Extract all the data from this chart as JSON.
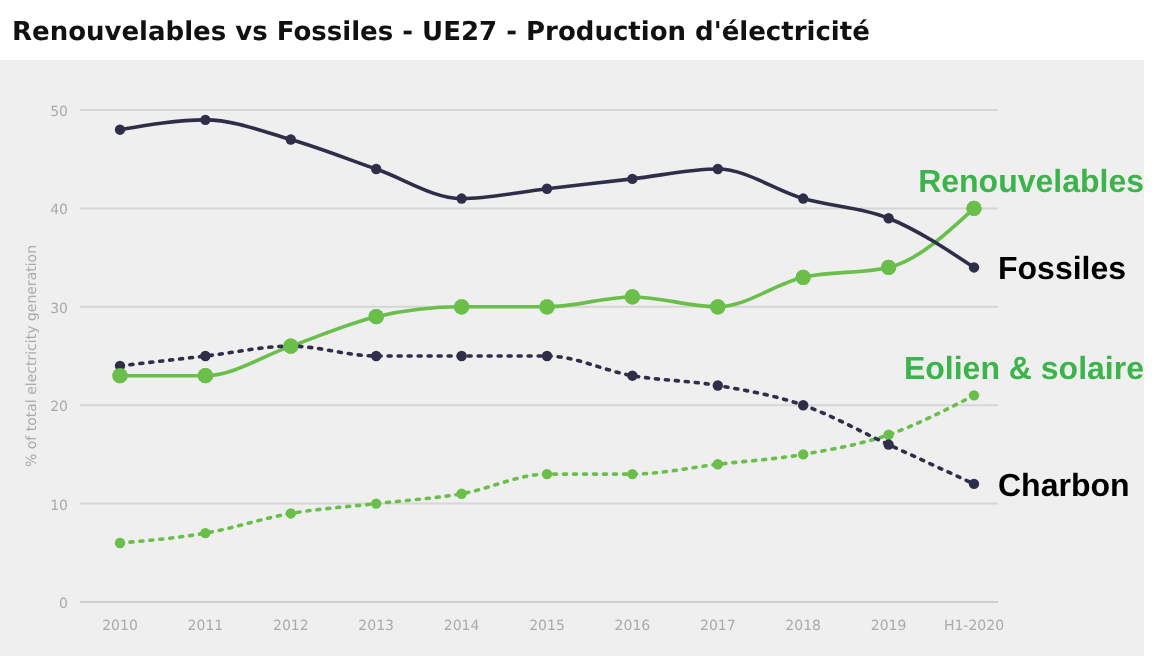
{
  "chart_data": {
    "type": "line",
    "title": "Renouvelables vs Fossiles - UE27 - Production d'électricité",
    "ylabel": "% of total electricity generation",
    "categories": [
      "2010",
      "2011",
      "2012",
      "2013",
      "2014",
      "2015",
      "2016",
      "2017",
      "2018",
      "2019",
      "H1-2020"
    ],
    "series": [
      {
        "name": "Renouvelables",
        "color": "#6abf4b",
        "line_style": "solid",
        "values": [
          23,
          23,
          26,
          29,
          30,
          30,
          31,
          30,
          33,
          34,
          40
        ]
      },
      {
        "name": "Fossiles",
        "color": "#2e2d4a",
        "line_style": "solid",
        "values": [
          48,
          49,
          47,
          44,
          41,
          42,
          43,
          44,
          41,
          39,
          34
        ]
      },
      {
        "name": "Eolien & solaire",
        "color": "#6abf4b",
        "line_style": "dotted",
        "values": [
          6,
          7,
          9,
          10,
          11,
          13,
          13,
          14,
          15,
          17,
          21
        ]
      },
      {
        "name": "Charbon",
        "color": "#2e2d4a",
        "line_style": "dotted",
        "values": [
          24,
          25,
          26,
          25,
          25,
          25,
          23,
          22,
          20,
          16,
          12
        ]
      }
    ],
    "ylim": [
      0,
      50
    ],
    "yticks": [
      0,
      10,
      20,
      30,
      40,
      50
    ],
    "grid": "y",
    "marker": "circle",
    "legend": "right"
  }
}
